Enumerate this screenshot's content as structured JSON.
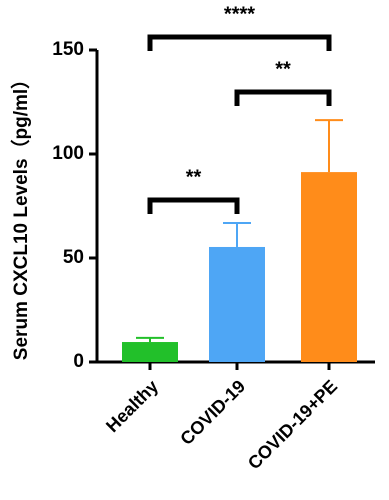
{
  "chart_data": {
    "type": "bar",
    "y_label": "Serum CXCL10 Levels（pg/ml）",
    "categories": [
      "Healthy",
      "COVID-19",
      "COVID-19+PE"
    ],
    "values": [
      9.6,
      55.3,
      91.3
    ],
    "errors": [
      2,
      11.5,
      25
    ],
    "colors": [
      "#22c02a",
      "#4ea6f5",
      "#ff8c1a"
    ],
    "ylim": [
      0,
      150
    ],
    "yticks": [
      0,
      50,
      100,
      150
    ],
    "annotations": [
      "**",
      "**",
      "****"
    ]
  }
}
